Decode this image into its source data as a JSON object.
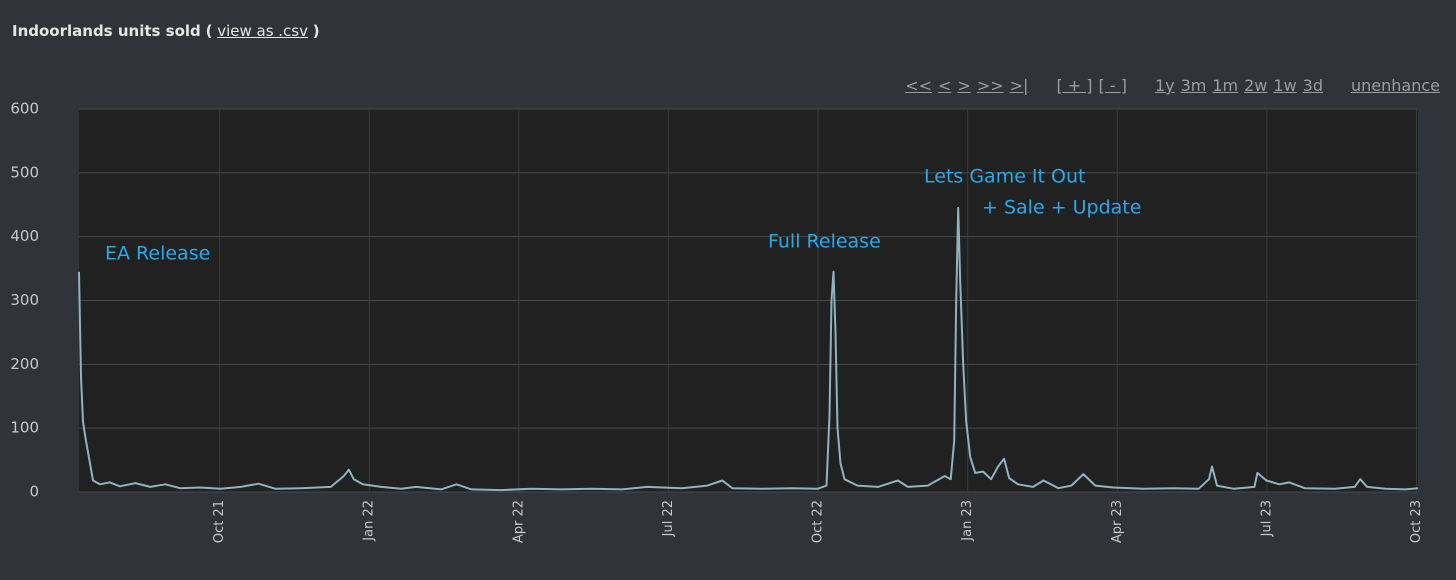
{
  "header": {
    "title": "Indoorlands units sold",
    "open": "(",
    "link": "view as .csv",
    "close": ")"
  },
  "controls": [
    "<<",
    "<",
    ">",
    ">>",
    ">|",
    "[ + ]",
    "[ - ]",
    "1y",
    "3m",
    "1m",
    "2w",
    "1w",
    "3d",
    "unenhance"
  ],
  "chart_data": {
    "type": "line",
    "color": "#8fb3c0",
    "grid": true,
    "annotations": [
      "EA Release",
      "Full Release",
      "Lets Game It Out",
      "+ Sale + Update"
    ],
    "xlim": [
      7.18,
      34.03
    ],
    "ylim": [
      0,
      600
    ],
    "yticks": [
      0,
      100,
      200,
      300,
      400,
      500,
      600
    ],
    "xticks": [
      {
        "value": 10,
        "label": "Oct 21"
      },
      {
        "value": 13,
        "label": "Jan 22"
      },
      {
        "value": 16,
        "label": "Apr 22"
      },
      {
        "value": 19,
        "label": "Jul 22"
      },
      {
        "value": 22,
        "label": "Oct 22"
      },
      {
        "value": 25,
        "label": "Jan 23"
      },
      {
        "value": 28,
        "label": "Apr 23"
      },
      {
        "value": 31,
        "label": "Jul 23"
      },
      {
        "value": 34,
        "label": "Oct 23"
      }
    ],
    "x": [
      7.18,
      7.22,
      7.26,
      7.32,
      7.4,
      7.46,
      7.6,
      7.8,
      8.0,
      8.31,
      8.61,
      8.91,
      9.21,
      9.61,
      10.02,
      10.42,
      10.78,
      11.12,
      11.63,
      12.23,
      12.49,
      12.59,
      12.69,
      12.87,
      13.24,
      13.64,
      13.94,
      14.44,
      14.75,
      15.05,
      15.65,
      16.25,
      16.86,
      17.46,
      18.07,
      18.57,
      19.27,
      19.78,
      20.08,
      20.28,
      20.88,
      21.49,
      21.99,
      22.17,
      22.23,
      22.27,
      22.31,
      22.35,
      22.39,
      22.45,
      22.53,
      22.79,
      23.2,
      23.6,
      23.8,
      24.2,
      24.54,
      24.66,
      24.73,
      24.77,
      24.81,
      24.85,
      24.91,
      24.97,
      25.05,
      25.15,
      25.31,
      25.47,
      25.61,
      25.73,
      25.83,
      26.01,
      26.31,
      26.52,
      26.82,
      27.08,
      27.32,
      27.56,
      27.92,
      28.53,
      29.13,
      29.63,
      29.84,
      29.9,
      30.0,
      30.34,
      30.75,
      30.81,
      30.99,
      31.25,
      31.45,
      31.76,
      32.36,
      32.76,
      32.87,
      33.01,
      33.38,
      33.78,
      34.03
    ],
    "values": [
      345,
      180,
      110,
      80,
      45,
      18,
      12,
      15,
      9,
      14,
      8,
      12,
      6,
      7,
      5,
      8,
      13,
      5,
      6,
      8,
      25,
      35,
      20,
      12,
      8,
      5,
      8,
      4,
      12,
      4,
      3,
      5,
      4,
      5,
      4,
      8,
      6,
      10,
      18,
      6,
      5,
      6,
      5,
      10,
      120,
      300,
      345,
      250,
      100,
      45,
      20,
      10,
      8,
      18,
      8,
      10,
      25,
      20,
      80,
      300,
      445,
      330,
      200,
      110,
      55,
      30,
      32,
      20,
      40,
      52,
      22,
      12,
      8,
      18,
      6,
      10,
      28,
      10,
      7,
      5,
      6,
      5,
      20,
      40,
      10,
      5,
      8,
      30,
      18,
      12,
      15,
      6,
      5,
      8,
      20,
      8,
      5,
      4,
      6
    ]
  }
}
